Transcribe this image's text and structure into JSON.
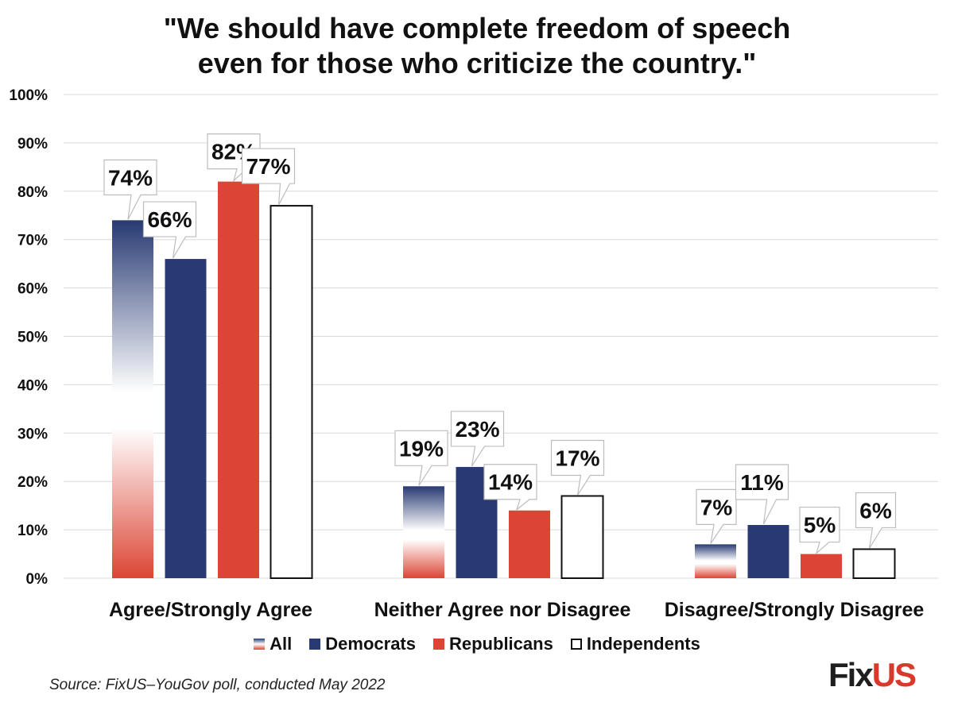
{
  "chart_data": {
    "type": "bar",
    "title_lines": [
      "\"We should have complete freedom of speech",
      "even for those who criticize the country.\""
    ],
    "categories": [
      "Agree/Strongly Agree",
      "Neither Agree nor Disagree",
      "Disagree/Strongly Disagree"
    ],
    "series": [
      {
        "name": "All",
        "values": [
          74,
          19,
          7
        ],
        "labels": [
          "74%",
          "19%",
          "7%"
        ],
        "style": "gradient"
      },
      {
        "name": "Democrats",
        "values": [
          66,
          23,
          11
        ],
        "labels": [
          "66%",
          "23%",
          "11%"
        ],
        "color": "#283a73"
      },
      {
        "name": "Republicans",
        "values": [
          82,
          14,
          5
        ],
        "labels": [
          "82%",
          "14%",
          "5%"
        ],
        "color": "#dc4535"
      },
      {
        "name": "Independents",
        "values": [
          77,
          17,
          6
        ],
        "labels": [
          "77%",
          "17%",
          "6%"
        ],
        "color": "#ffffff"
      }
    ],
    "ylim": [
      0,
      100
    ],
    "yticks": [
      0,
      10,
      20,
      30,
      40,
      50,
      60,
      70,
      80,
      90,
      100
    ],
    "ytick_labels": [
      "0%",
      "10%",
      "20%",
      "30%",
      "40%",
      "50%",
      "60%",
      "70%",
      "80%",
      "90%",
      "100%"
    ],
    "grid": true,
    "legend_position": "bottom-center",
    "xlabel": "",
    "ylabel": ""
  },
  "source": "Source: FixUS–YouGov poll, conducted May 2022",
  "logo": {
    "part1": "Fix",
    "part2": "US"
  },
  "colors": {
    "navy": "#283a73",
    "red": "#dc4535",
    "grid": "#d9d9d9"
  }
}
